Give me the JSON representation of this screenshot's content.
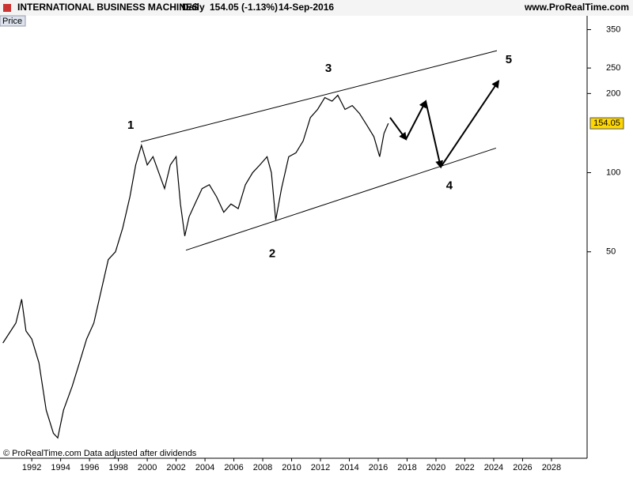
{
  "chart_data": {
    "type": "line",
    "title": "INTERNATIONAL BUSINESS MACHINES",
    "period": "Daily",
    "quote": "154.05 (-1.13%)",
    "date": "14-Sep-2016",
    "source": "www.ProRealTime.com",
    "panel_label": "Price",
    "footer": "© ProRealTime.com  Data adjusted after dividends",
    "log_scale": true,
    "xlim": [
      1989.8,
      2030.47
    ],
    "ylim": [
      8.2,
      395
    ],
    "xticks": [
      1992,
      1994,
      1996,
      1998,
      2000,
      2002,
      2004,
      2006,
      2008,
      2010,
      2012,
      2014,
      2016,
      2018,
      2020,
      2022,
      2024,
      2026,
      2028
    ],
    "yticks": [
      50,
      100,
      200,
      250,
      350
    ],
    "x": [
      1990.0,
      1990.9,
      1991.3,
      1991.6,
      1992.0,
      1992.5,
      1993.0,
      1993.5,
      1993.8,
      1994.2,
      1994.8,
      1995.3,
      1995.8,
      1996.3,
      1996.8,
      1997.3,
      1997.8,
      1998.3,
      1998.8,
      1999.2,
      1999.6,
      2000.0,
      2000.4,
      2000.8,
      2001.2,
      2001.6,
      2002.0,
      2002.3,
      2002.6,
      2002.9,
      2003.3,
      2003.8,
      2004.3,
      2004.8,
      2005.3,
      2005.8,
      2006.3,
      2006.8,
      2007.3,
      2007.8,
      2008.3,
      2008.6,
      2008.9,
      2009.3,
      2009.8,
      2010.3,
      2010.8,
      2011.3,
      2011.8,
      2012.3,
      2012.8,
      2013.2,
      2013.7,
      2014.2,
      2014.7,
      2015.2,
      2015.7,
      2016.1,
      2016.4,
      2016.7
    ],
    "series": [
      {
        "name": "Price",
        "color": "#000000",
        "values": [
          22.5,
          26.8,
          33,
          25,
          23.3,
          18.9,
          12.5,
          10.2,
          9.8,
          12.5,
          15.4,
          18.9,
          23.3,
          26.8,
          35.4,
          46.7,
          50,
          61.6,
          81,
          107,
          127,
          107,
          115,
          100,
          87,
          107,
          115,
          76,
          57.4,
          68,
          76,
          87,
          90,
          81,
          70.7,
          76,
          73,
          90,
          100,
          107,
          115,
          100,
          66,
          87,
          115,
          119,
          132,
          162,
          174,
          193,
          187,
          197,
          174,
          180,
          168,
          152,
          137,
          115,
          141,
          154.05
        ]
      }
    ],
    "last_price": 154.05,
    "last_price_color": "#ffd700",
    "channel": [
      {
        "x": [
          1999.56,
          2024.22
        ],
        "y": [
          131,
          291
        ]
      },
      {
        "x": [
          2002.68,
          2024.16
        ],
        "y": [
          50.7,
          124
        ]
      }
    ],
    "projection": {
      "x": [
        2016.82,
        2017.92,
        2019.29,
        2020.33,
        2024.33
      ],
      "y": [
        162,
        134,
        187,
        105,
        223
      ]
    },
    "annotations": [
      {
        "text": "1",
        "x": 1998.85,
        "y": 151
      },
      {
        "text": "2",
        "x": 2008.66,
        "y": 49
      },
      {
        "text": "3",
        "x": 2012.55,
        "y": 248
      },
      {
        "text": "4",
        "x": 2020.93,
        "y": 89
      },
      {
        "text": "5",
        "x": 2025.04,
        "y": 268
      }
    ]
  }
}
